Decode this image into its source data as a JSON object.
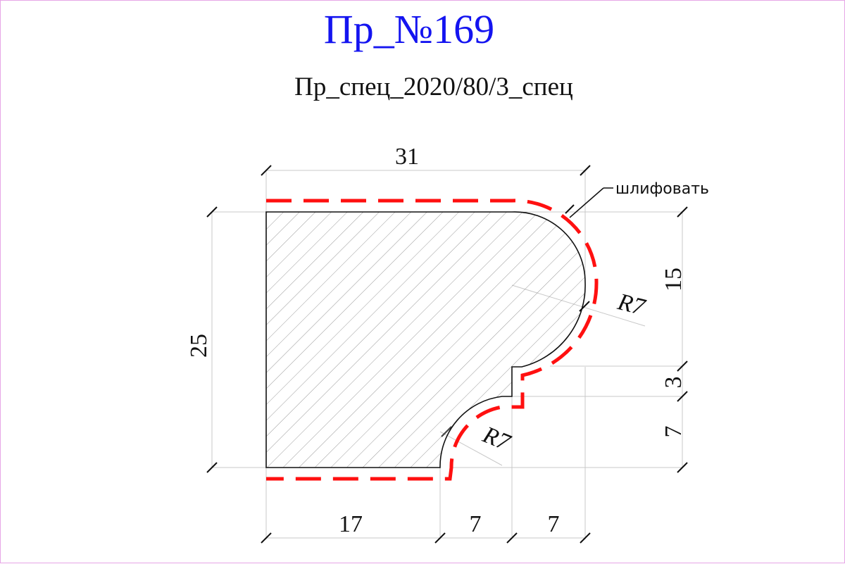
{
  "title": "Пр_№169",
  "subtitle": "Пр_спец_2020/80/3_спец",
  "colors": {
    "title": "#1414f0",
    "grind_path": "#ff1010",
    "frame": "#e7a6e7",
    "hatch": "#9a9a9a",
    "extension_lines": "#c8c8c8"
  },
  "dimensions": {
    "overall_width": "31",
    "overall_height": "25",
    "right_upper": "15",
    "right_step": "3",
    "right_lower": "7",
    "bottom_left": "17",
    "bottom_mid": "7",
    "bottom_right": "7",
    "radius_upper": "R7",
    "radius_lower": "R7"
  },
  "note": "шлифовать"
}
